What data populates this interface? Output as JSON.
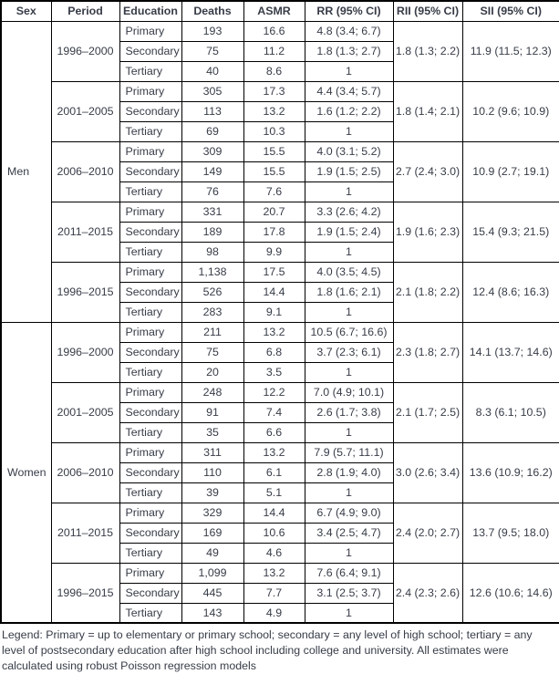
{
  "page": {
    "background_color": "#ffffff",
    "text_color": "#373c47",
    "border_color": "#000000"
  },
  "table": {
    "headers": [
      "Sex",
      "Period",
      "Education",
      "Deaths",
      "ASMR",
      "RR (95% CI)",
      "RII (95% CI)",
      "SII (95% CI)"
    ],
    "groups": [
      {
        "sex": "Men",
        "periods": [
          {
            "period": "1996–2000",
            "rii": "1.8 (1.3; 2.2)",
            "sii": "11.9 (11.5; 12.3)",
            "rows": [
              {
                "education": "Primary",
                "deaths": "193",
                "asmr": "16.6",
                "rr": "4.8 (3.4; 6.7)"
              },
              {
                "education": "Secondary",
                "deaths": "75",
                "asmr": "11.2",
                "rr": "1.8 (1.3; 2.7)"
              },
              {
                "education": "Tertiary",
                "deaths": "40",
                "asmr": "8.6",
                "rr": "1"
              }
            ]
          },
          {
            "period": "2001–2005",
            "rii": "1.8 (1.4; 2.1)",
            "sii": "10.2 (9.6; 10.9)",
            "rows": [
              {
                "education": "Primary",
                "deaths": "305",
                "asmr": "17.3",
                "rr": "4.4 (3.4; 5.7)"
              },
              {
                "education": "Secondary",
                "deaths": "113",
                "asmr": "13.2",
                "rr": "1.6 (1.2; 2.2)"
              },
              {
                "education": "Tertiary",
                "deaths": "69",
                "asmr": "10.3",
                "rr": "1"
              }
            ]
          },
          {
            "period": "2006–2010",
            "rii": "2.7 (2.4; 3.0)",
            "sii": "10.9 (2.7; 19.1)",
            "rows": [
              {
                "education": "Primary",
                "deaths": "309",
                "asmr": "15.5",
                "rr": "4.0 (3.1; 5.2)"
              },
              {
                "education": "Secondary",
                "deaths": "149",
                "asmr": "15.5",
                "rr": "1.9 (1.5; 2.5)"
              },
              {
                "education": "Tertiary",
                "deaths": "76",
                "asmr": "7.6",
                "rr": "1"
              }
            ]
          },
          {
            "period": "2011–2015",
            "rii": "1.9 (1.6; 2.3)",
            "sii": "15.4 (9.3; 21.5)",
            "rows": [
              {
                "education": "Primary",
                "deaths": "331",
                "asmr": "20.7",
                "rr": "3.3 (2.6; 4.2)"
              },
              {
                "education": "Secondary",
                "deaths": "189",
                "asmr": "17.8",
                "rr": "1.9 (1.5; 2.4)"
              },
              {
                "education": "Tertiary",
                "deaths": "98",
                "asmr": "9.9",
                "rr": "1"
              }
            ]
          },
          {
            "period": "1996–2015",
            "rii": "2.1 (1.8; 2.2)",
            "sii": "12.4 (8.6; 16.3)",
            "rows": [
              {
                "education": "Primary",
                "deaths": "1,138",
                "asmr": "17.5",
                "rr": "4.0 (3.5; 4.5)"
              },
              {
                "education": "Secondary",
                "deaths": "526",
                "asmr": "14.4",
                "rr": "1.8 (1.6; 2.1)"
              },
              {
                "education": "Tertiary",
                "deaths": "283",
                "asmr": "9.1",
                "rr": "1"
              }
            ]
          }
        ]
      },
      {
        "sex": "Women",
        "periods": [
          {
            "period": "1996–2000",
            "rii": "2.3 (1.8; 2.7)",
            "sii": "14.1 (13.7; 14.6)",
            "rows": [
              {
                "education": "Primary",
                "deaths": "211",
                "asmr": "13.2",
                "rr": "10.5 (6.7; 16.6)"
              },
              {
                "education": "Secondary",
                "deaths": "75",
                "asmr": "6.8",
                "rr": "3.7 (2.3; 6.1)"
              },
              {
                "education": "Tertiary",
                "deaths": "20",
                "asmr": "3.5",
                "rr": "1"
              }
            ]
          },
          {
            "period": "2001–2005",
            "rii": "2.1 (1.7; 2.5)",
            "sii": "8.3 (6.1; 10.5)",
            "rows": [
              {
                "education": "Primary",
                "deaths": "248",
                "asmr": "12.2",
                "rr": "7.0 (4.9; 10.1)"
              },
              {
                "education": "Secondary",
                "deaths": "91",
                "asmr": "7.4",
                "rr": "2.6 (1.7; 3.8)"
              },
              {
                "education": "Tertiary",
                "deaths": "35",
                "asmr": "6.6",
                "rr": "1"
              }
            ]
          },
          {
            "period": "2006–2010",
            "rii": "3.0 (2.6; 3.4)",
            "sii": "13.6 (10.9; 16.2)",
            "rows": [
              {
                "education": "Primary",
                "deaths": "311",
                "asmr": "13.2",
                "rr": "7.9 (5.7; 11.1)"
              },
              {
                "education": "Secondary",
                "deaths": "110",
                "asmr": "6.1",
                "rr": "2.8 (1.9; 4.0)"
              },
              {
                "education": "Tertiary",
                "deaths": "39",
                "asmr": "5.1",
                "rr": "1"
              }
            ]
          },
          {
            "period": "2011–2015",
            "rii": "2.4 (2.0; 2.7)",
            "sii": "13.7 (9.5; 18.0)",
            "rows": [
              {
                "education": "Primary",
                "deaths": "329",
                "asmr": "14.4",
                "rr": "6.7 (4.9; 9.0)"
              },
              {
                "education": "Secondary",
                "deaths": "169",
                "asmr": "10.6",
                "rr": "3.4 (2.5; 4.7)"
              },
              {
                "education": "Tertiary",
                "deaths": "49",
                "asmr": "4.6",
                "rr": "1"
              }
            ]
          },
          {
            "period": "1996–2015",
            "rii": "2.4 (2.3; 2.6)",
            "sii": "12.6 (10.6; 14.6)",
            "rows": [
              {
                "education": "Primary",
                "deaths": "1,099",
                "asmr": "13.2",
                "rr": "7.6 (6.4; 9.1)"
              },
              {
                "education": "Secondary",
                "deaths": "445",
                "asmr": "7.7",
                "rr": "3.1 (2.5; 3.7)"
              },
              {
                "education": "Tertiary",
                "deaths": "143",
                "asmr": "4.9",
                "rr": "1"
              }
            ]
          }
        ]
      }
    ],
    "legend": "Legend: Primary = up to elementary or primary school; secondary = any level of high school; tertiary = any level of postsecondary education after high school including college and university. All estimates were calculated using robust Poisson regression models"
  },
  "chart_data": {
    "type": "table",
    "title": "",
    "columns": [
      "Sex",
      "Period",
      "Education",
      "Deaths",
      "ASMR",
      "RR (95% CI)",
      "RII (95% CI)",
      "SII (95% CI)"
    ]
  }
}
